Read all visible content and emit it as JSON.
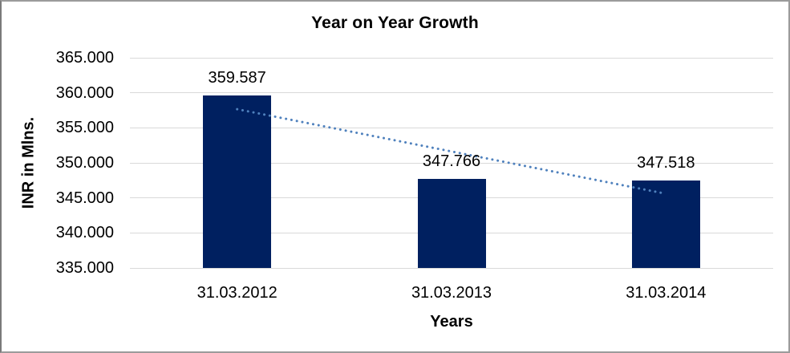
{
  "chart_data": {
    "type": "bar",
    "title": "Year on Year Growth",
    "xlabel": "Years",
    "ylabel": "INR in Mlns.",
    "categories": [
      "31.03.2012",
      "31.03.2013",
      "31.03.2014"
    ],
    "values": [
      359.587,
      347.766,
      347.518
    ],
    "data_labels": [
      "359.587",
      "347.766",
      "347.518"
    ],
    "ytick_labels": [
      "365.000",
      "360.000",
      "355.000",
      "350.000",
      "345.000",
      "340.000",
      "335.000"
    ],
    "ylim": [
      335,
      365
    ],
    "grid": true,
    "legend": "none",
    "bar_color": "#002060",
    "grid_color": "#d9d9d9",
    "trendline": {
      "style": "dotted",
      "color": "#4F81BD",
      "start_value": 357.66,
      "end_value": 345.59
    }
  }
}
